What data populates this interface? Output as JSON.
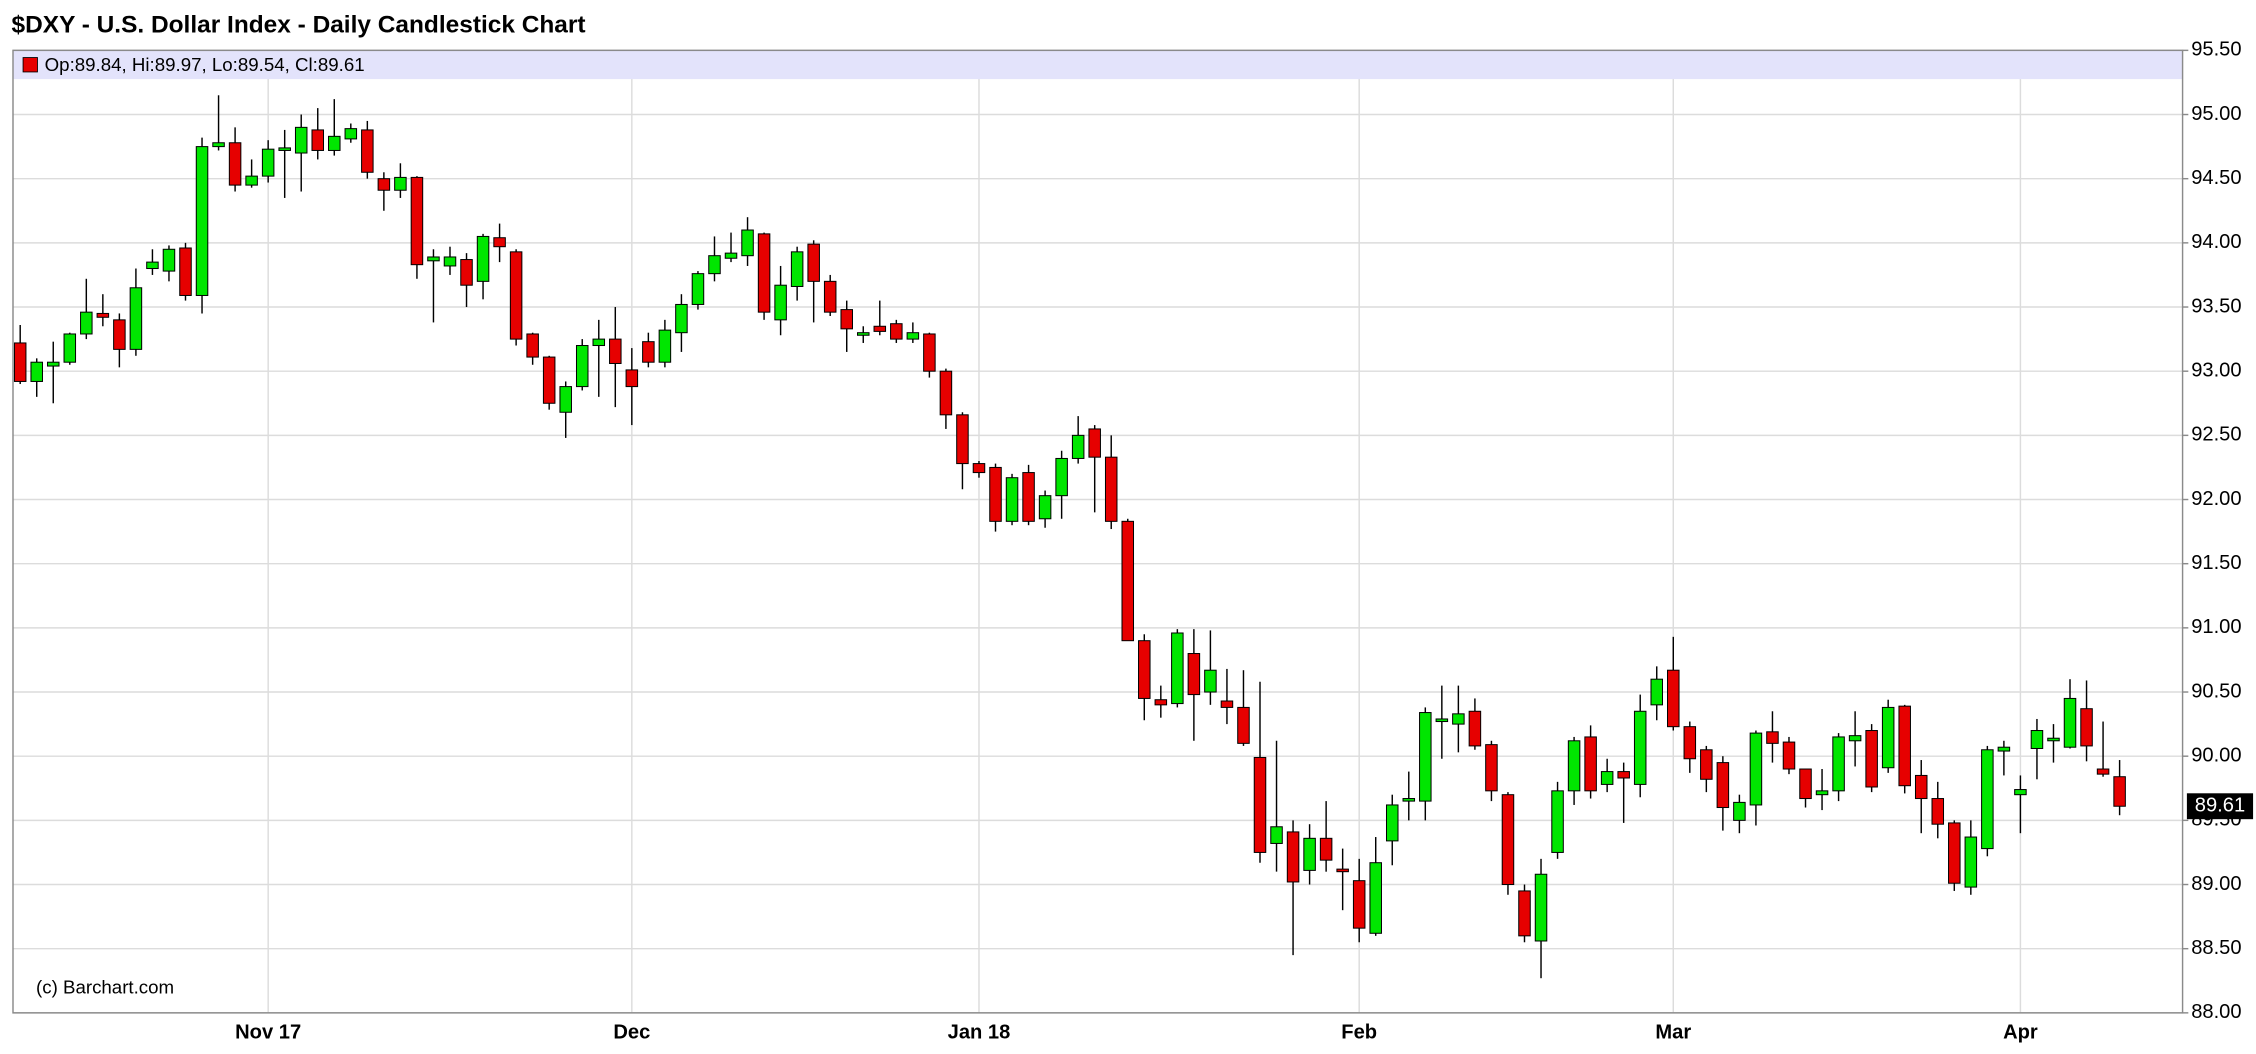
{
  "chart_data": {
    "type": "candlestick",
    "title": "$DXY - U.S. Dollar Index - Daily Candlestick Chart",
    "legend": "Op:89.84, Hi:89.97, Lo:89.54, Cl:89.61",
    "watermark": "(c) Barchart.com",
    "up_color": "#00e600",
    "down_color": "#e60000",
    "grid": true,
    "categories": [
      null,
      null,
      null,
      null,
      null,
      null,
      null,
      null,
      null,
      null,
      null,
      null,
      null,
      null,
      null,
      "Nov 17",
      null,
      null,
      null,
      null,
      null,
      null,
      null,
      null,
      null,
      null,
      null,
      null,
      null,
      null,
      null,
      null,
      null,
      null,
      null,
      null,
      null,
      "Dec",
      null,
      null,
      null,
      null,
      null,
      null,
      null,
      null,
      null,
      null,
      null,
      null,
      null,
      null,
      null,
      null,
      null,
      null,
      null,
      null,
      "Jan 18",
      null,
      null,
      null,
      null,
      null,
      null,
      null,
      null,
      null,
      null,
      null,
      null,
      null,
      null,
      null,
      null,
      null,
      null,
      null,
      null,
      null,
      null,
      "Feb",
      null,
      null,
      null,
      null,
      null,
      null,
      null,
      null,
      null,
      null,
      null,
      null,
      null,
      null,
      null,
      null,
      null,
      null,
      "Mar",
      null,
      null,
      null,
      null,
      null,
      null,
      null,
      null,
      null,
      null,
      null,
      null,
      null,
      null,
      null,
      null,
      null,
      null,
      null,
      null,
      "Apr",
      null,
      null,
      null,
      null,
      null,
      null
    ],
    "open": [
      93.22,
      92.92,
      93.04,
      93.07,
      93.29,
      93.45,
      93.4,
      93.17,
      93.8,
      93.78,
      93.96,
      93.59,
      94.75,
      94.78,
      94.45,
      94.52,
      94.72,
      94.7,
      94.88,
      94.72,
      94.81,
      94.88,
      94.5,
      94.41,
      94.51,
      93.86,
      93.82,
      93.87,
      93.7,
      94.04,
      93.93,
      93.29,
      93.11,
      92.68,
      92.88,
      93.2,
      93.25,
      93.01,
      93.23,
      93.07,
      93.3,
      93.52,
      93.76,
      93.88,
      93.9,
      94.07,
      93.4,
      93.66,
      93.99,
      93.7,
      93.48,
      93.28,
      93.35,
      93.37,
      93.25,
      93.29,
      93.0,
      92.66,
      92.28,
      92.25,
      91.83,
      92.21,
      91.85,
      92.03,
      92.32,
      92.55,
      92.33,
      91.83,
      90.9,
      90.44,
      90.41,
      90.8,
      90.5,
      90.43,
      90.38,
      89.99,
      89.32,
      89.41,
      89.11,
      89.36,
      89.12,
      89.03,
      88.62,
      89.34,
      89.65,
      89.65,
      90.27,
      90.25,
      90.35,
      90.09,
      89.7,
      88.95,
      88.56,
      89.25,
      89.73,
      90.15,
      89.78,
      89.88,
      89.78,
      90.4,
      90.67,
      90.23,
      90.05,
      89.95,
      89.5,
      89.62,
      90.19,
      90.11,
      89.9,
      89.7,
      89.73,
      90.12,
      90.2,
      89.91,
      90.39,
      89.85,
      89.67,
      89.48,
      88.98,
      89.28,
      90.04,
      89.7,
      90.06,
      90.12,
      90.07,
      90.37,
      89.9,
      89.84
    ],
    "high": [
      93.36,
      93.1,
      93.23,
      93.3,
      93.72,
      93.6,
      93.45,
      93.8,
      93.95,
      93.98,
      94.0,
      94.82,
      95.15,
      94.9,
      94.65,
      94.8,
      94.88,
      95.0,
      95.05,
      95.12,
      94.93,
      94.95,
      94.55,
      94.62,
      94.52,
      93.95,
      93.97,
      93.92,
      94.07,
      94.15,
      93.95,
      93.3,
      93.12,
      92.92,
      93.25,
      93.4,
      93.5,
      93.18,
      93.3,
      93.4,
      93.6,
      93.78,
      94.05,
      94.08,
      94.2,
      94.08,
      93.82,
      93.97,
      94.02,
      93.75,
      93.55,
      93.35,
      93.55,
      93.4,
      93.38,
      93.3,
      93.02,
      92.68,
      92.3,
      92.28,
      92.2,
      92.27,
      92.07,
      92.38,
      92.65,
      92.58,
      92.5,
      91.85,
      90.95,
      90.55,
      90.99,
      90.99,
      90.98,
      90.68,
      90.67,
      90.58,
      90.12,
      89.5,
      89.47,
      89.65,
      89.28,
      89.2,
      89.37,
      89.7,
      89.88,
      90.38,
      90.55,
      90.55,
      90.45,
      90.12,
      89.72,
      89.0,
      89.2,
      89.8,
      90.15,
      90.24,
      89.98,
      89.95,
      90.48,
      90.7,
      90.93,
      90.27,
      90.08,
      90.0,
      89.7,
      90.2,
      90.35,
      90.15,
      89.9,
      89.9,
      90.18,
      90.35,
      90.25,
      90.44,
      90.4,
      89.97,
      89.8,
      89.5,
      89.5,
      90.08,
      90.12,
      89.85,
      90.29,
      90.25,
      90.6,
      90.59,
      90.27,
      89.97
    ],
    "low": [
      92.9,
      92.8,
      92.75,
      93.05,
      93.25,
      93.35,
      93.03,
      93.12,
      93.75,
      93.7,
      93.55,
      93.45,
      94.72,
      94.4,
      94.43,
      94.47,
      94.35,
      94.4,
      94.65,
      94.68,
      94.78,
      94.5,
      94.25,
      94.35,
      93.72,
      93.38,
      93.75,
      93.5,
      93.56,
      93.85,
      93.2,
      93.05,
      92.7,
      92.48,
      92.85,
      92.8,
      92.72,
      92.58,
      93.03,
      93.03,
      93.15,
      93.48,
      93.7,
      93.85,
      93.82,
      93.4,
      93.28,
      93.55,
      93.38,
      93.43,
      93.15,
      93.22,
      93.28,
      93.22,
      93.22,
      92.95,
      92.55,
      92.08,
      92.17,
      91.75,
      91.8,
      91.8,
      91.78,
      91.85,
      92.28,
      91.9,
      91.77,
      90.9,
      90.28,
      90.3,
      90.38,
      90.12,
      90.4,
      90.25,
      90.08,
      89.17,
      89.1,
      88.45,
      89.0,
      89.1,
      88.8,
      88.55,
      88.6,
      89.15,
      89.5,
      89.5,
      89.98,
      90.03,
      90.05,
      89.65,
      88.92,
      88.55,
      88.27,
      89.2,
      89.62,
      89.67,
      89.72,
      89.48,
      89.68,
      90.28,
      90.2,
      89.87,
      89.72,
      89.42,
      89.4,
      89.46,
      89.95,
      89.86,
      89.6,
      89.58,
      89.65,
      89.92,
      89.72,
      89.87,
      89.71,
      89.4,
      89.36,
      88.95,
      88.92,
      89.22,
      89.85,
      89.4,
      89.82,
      89.95,
      90.06,
      89.96,
      89.84,
      89.54
    ],
    "close": [
      92.92,
      93.07,
      93.07,
      93.29,
      93.46,
      93.42,
      93.17,
      93.65,
      93.85,
      93.95,
      93.59,
      94.75,
      94.78,
      94.45,
      94.52,
      94.73,
      94.74,
      94.9,
      94.72,
      94.83,
      94.89,
      94.55,
      94.41,
      94.51,
      93.83,
      93.89,
      93.89,
      93.67,
      94.05,
      93.97,
      93.25,
      93.11,
      92.75,
      92.88,
      93.2,
      93.25,
      93.06,
      92.88,
      93.07,
      93.32,
      93.52,
      93.76,
      93.9,
      93.92,
      94.1,
      93.46,
      93.67,
      93.93,
      93.7,
      93.46,
      93.33,
      93.3,
      93.31,
      93.25,
      93.3,
      93.0,
      92.66,
      92.28,
      92.21,
      91.83,
      92.17,
      91.83,
      92.03,
      92.32,
      92.5,
      92.33,
      91.83,
      90.9,
      90.45,
      90.4,
      90.96,
      90.48,
      90.67,
      90.38,
      90.1,
      89.25,
      89.45,
      89.02,
      89.36,
      89.19,
      89.1,
      88.66,
      89.17,
      89.62,
      89.67,
      90.34,
      90.29,
      90.33,
      90.08,
      89.73,
      89.0,
      88.6,
      89.08,
      89.73,
      90.12,
      89.73,
      89.88,
      89.83,
      90.35,
      90.6,
      90.23,
      89.98,
      89.82,
      89.6,
      89.64,
      90.18,
      90.1,
      89.9,
      89.67,
      89.73,
      90.15,
      90.16,
      89.76,
      90.38,
      89.77,
      89.67,
      89.47,
      89.01,
      89.37,
      90.05,
      90.07,
      89.74,
      90.2,
      90.14,
      90.45,
      90.08,
      89.86,
      89.61
    ],
    "ylim": [
      88,
      95.5
    ],
    "yticks": [
      {
        "value": 88,
        "label": "88.00"
      },
      {
        "value": 88.5,
        "label": "88.50"
      },
      {
        "value": 89,
        "label": "89.00"
      },
      {
        "value": 89.5,
        "label": "89.50"
      },
      {
        "value": 90,
        "label": "90.00"
      },
      {
        "value": 90.5,
        "label": "90.50"
      },
      {
        "value": 91,
        "label": "91.00"
      },
      {
        "value": 91.5,
        "label": "91.50"
      },
      {
        "value": 92,
        "label": "92.00"
      },
      {
        "value": 92.5,
        "label": "92.50"
      },
      {
        "value": 93,
        "label": "93.00"
      },
      {
        "value": 93.5,
        "label": "93.50"
      },
      {
        "value": 94,
        "label": "94.00"
      },
      {
        "value": 94.5,
        "label": "94.50"
      },
      {
        "value": 95,
        "label": "95.00"
      },
      {
        "value": 95.5,
        "label": "95.50"
      }
    ]
  }
}
